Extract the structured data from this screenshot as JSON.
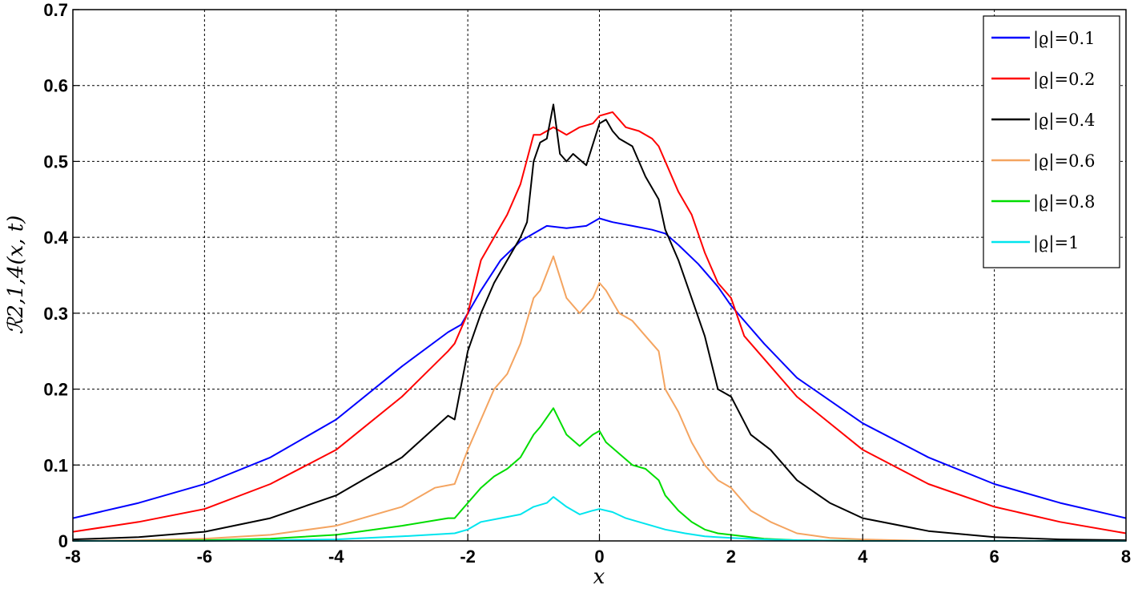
{
  "chart_data": {
    "type": "line",
    "xlabel": "x",
    "ylabel": "ℛ2,1,4(x, t)",
    "xlim": [
      -8,
      8
    ],
    "ylim": [
      0,
      0.7
    ],
    "xticks": [
      -8,
      -6,
      -4,
      -2,
      0,
      2,
      4,
      6,
      8
    ],
    "yticks": [
      0,
      0.1,
      0.2,
      0.3,
      0.4,
      0.5,
      0.6,
      0.7
    ],
    "xtick_labels": [
      "-8",
      "-6",
      "-4",
      "-2",
      "0",
      "2",
      "4",
      "6",
      "8"
    ],
    "ytick_labels": [
      "0",
      "0.1",
      "0.2",
      "0.3",
      "0.4",
      "0.5",
      "0.6",
      "0.7"
    ],
    "grid": true,
    "grid_style": "dashed",
    "legend_position": "top-right",
    "series": [
      {
        "name": "|ϱ|=0.1",
        "color": "#0000ff",
        "x": [
          -8,
          -7,
          -6,
          -5,
          -4,
          -3,
          -2.3,
          -2.1,
          -2,
          -1.8,
          -1.5,
          -1.2,
          -1,
          -0.8,
          -0.5,
          -0.2,
          0,
          0.2,
          0.5,
          0.8,
          1,
          1.2,
          1.5,
          1.8,
          2,
          2.5,
          3,
          4,
          5,
          6,
          7,
          8
        ],
        "y": [
          0.03,
          0.05,
          0.075,
          0.11,
          0.16,
          0.23,
          0.275,
          0.285,
          0.3,
          0.33,
          0.37,
          0.395,
          0.405,
          0.415,
          0.412,
          0.415,
          0.425,
          0.42,
          0.415,
          0.41,
          0.405,
          0.39,
          0.365,
          0.335,
          0.31,
          0.26,
          0.215,
          0.155,
          0.11,
          0.075,
          0.05,
          0.03
        ]
      },
      {
        "name": "|ϱ|=0.2",
        "color": "#ff0000",
        "x": [
          -8,
          -7,
          -6,
          -5,
          -4,
          -3,
          -2.3,
          -2.2,
          -2.0,
          -1.8,
          -1.6,
          -1.4,
          -1.2,
          -1,
          -0.9,
          -0.7,
          -0.5,
          -0.3,
          -0.1,
          0,
          0.2,
          0.4,
          0.6,
          0.8,
          0.9,
          1.0,
          1.2,
          1.4,
          1.6,
          1.8,
          2,
          2.2,
          2.5,
          3,
          4,
          5,
          6,
          7,
          8
        ],
        "y": [
          0.012,
          0.025,
          0.042,
          0.075,
          0.12,
          0.19,
          0.25,
          0.26,
          0.3,
          0.37,
          0.4,
          0.43,
          0.47,
          0.535,
          0.535,
          0.545,
          0.535,
          0.545,
          0.55,
          0.56,
          0.565,
          0.545,
          0.54,
          0.53,
          0.52,
          0.5,
          0.46,
          0.43,
          0.38,
          0.34,
          0.32,
          0.27,
          0.24,
          0.19,
          0.12,
          0.075,
          0.045,
          0.025,
          0.01
        ]
      },
      {
        "name": "|ϱ|=0.4",
        "color": "#000000",
        "x": [
          -8,
          -7,
          -6,
          -5,
          -4,
          -3,
          -2.3,
          -2.2,
          -2.0,
          -1.8,
          -1.6,
          -1.4,
          -1.2,
          -1.1,
          -1,
          -0.9,
          -0.8,
          -0.7,
          -0.6,
          -0.5,
          -0.4,
          -0.2,
          0,
          0.1,
          0.2,
          0.3,
          0.5,
          0.7,
          0.9,
          1.0,
          1.2,
          1.4,
          1.6,
          1.8,
          2,
          2.3,
          2.6,
          3,
          3.5,
          4,
          5,
          6,
          7,
          8
        ],
        "y": [
          0.002,
          0.005,
          0.012,
          0.03,
          0.06,
          0.11,
          0.165,
          0.16,
          0.25,
          0.3,
          0.34,
          0.37,
          0.4,
          0.42,
          0.5,
          0.525,
          0.53,
          0.575,
          0.51,
          0.5,
          0.51,
          0.495,
          0.55,
          0.555,
          0.54,
          0.53,
          0.52,
          0.48,
          0.45,
          0.41,
          0.37,
          0.32,
          0.27,
          0.2,
          0.19,
          0.14,
          0.12,
          0.08,
          0.05,
          0.03,
          0.013,
          0.005,
          0.002,
          0.001
        ]
      },
      {
        "name": "|ϱ|=0.6",
        "color": "#f4a460",
        "x": [
          -8,
          -7,
          -6,
          -5,
          -4,
          -3,
          -2.5,
          -2.2,
          -2.0,
          -1.8,
          -1.6,
          -1.4,
          -1.2,
          -1.0,
          -0.9,
          -0.7,
          -0.5,
          -0.3,
          -0.1,
          0,
          0.1,
          0.3,
          0.5,
          0.7,
          0.9,
          1.0,
          1.2,
          1.4,
          1.6,
          1.8,
          2,
          2.3,
          2.6,
          3,
          3.5,
          4,
          5,
          6,
          7,
          8
        ],
        "y": [
          0.0,
          0.001,
          0.003,
          0.008,
          0.02,
          0.045,
          0.07,
          0.075,
          0.12,
          0.16,
          0.2,
          0.22,
          0.26,
          0.32,
          0.33,
          0.375,
          0.32,
          0.3,
          0.32,
          0.34,
          0.33,
          0.3,
          0.29,
          0.27,
          0.25,
          0.2,
          0.17,
          0.13,
          0.1,
          0.08,
          0.07,
          0.04,
          0.025,
          0.01,
          0.004,
          0.002,
          0.0,
          0.0,
          0.0,
          0.0
        ]
      },
      {
        "name": "|ϱ|=0.8",
        "color": "#00dd00",
        "x": [
          -8,
          -7,
          -6,
          -5,
          -4,
          -3,
          -2.3,
          -2.2,
          -2.0,
          -1.8,
          -1.6,
          -1.4,
          -1.2,
          -1.0,
          -0.9,
          -0.7,
          -0.5,
          -0.3,
          -0.1,
          0,
          0.1,
          0.3,
          0.5,
          0.7,
          0.9,
          1.0,
          1.2,
          1.4,
          1.6,
          1.8,
          2,
          2.5,
          3,
          4,
          5,
          6,
          7,
          8
        ],
        "y": [
          0.0,
          0.0,
          0.001,
          0.003,
          0.008,
          0.02,
          0.03,
          0.03,
          0.05,
          0.07,
          0.085,
          0.095,
          0.11,
          0.14,
          0.15,
          0.175,
          0.14,
          0.125,
          0.14,
          0.145,
          0.13,
          0.115,
          0.1,
          0.095,
          0.08,
          0.06,
          0.04,
          0.025,
          0.015,
          0.01,
          0.008,
          0.003,
          0.001,
          0.0,
          0.0,
          0.0,
          0.0,
          0.0
        ]
      },
      {
        "name": "|ϱ|=1",
        "color": "#00e5ee",
        "x": [
          -8,
          -6,
          -4,
          -3,
          -2.2,
          -2.0,
          -1.8,
          -1.5,
          -1.2,
          -1.0,
          -0.8,
          -0.7,
          -0.5,
          -0.3,
          -0.1,
          0,
          0.2,
          0.4,
          0.6,
          0.8,
          1.0,
          1.3,
          1.6,
          2,
          2.5,
          3,
          4,
          6,
          8
        ],
        "y": [
          0.0,
          0.0,
          0.002,
          0.006,
          0.01,
          0.015,
          0.025,
          0.03,
          0.035,
          0.045,
          0.05,
          0.058,
          0.045,
          0.035,
          0.04,
          0.042,
          0.038,
          0.03,
          0.025,
          0.02,
          0.015,
          0.01,
          0.006,
          0.004,
          0.002,
          0.001,
          0.0,
          0.0,
          0.0
        ]
      }
    ]
  }
}
